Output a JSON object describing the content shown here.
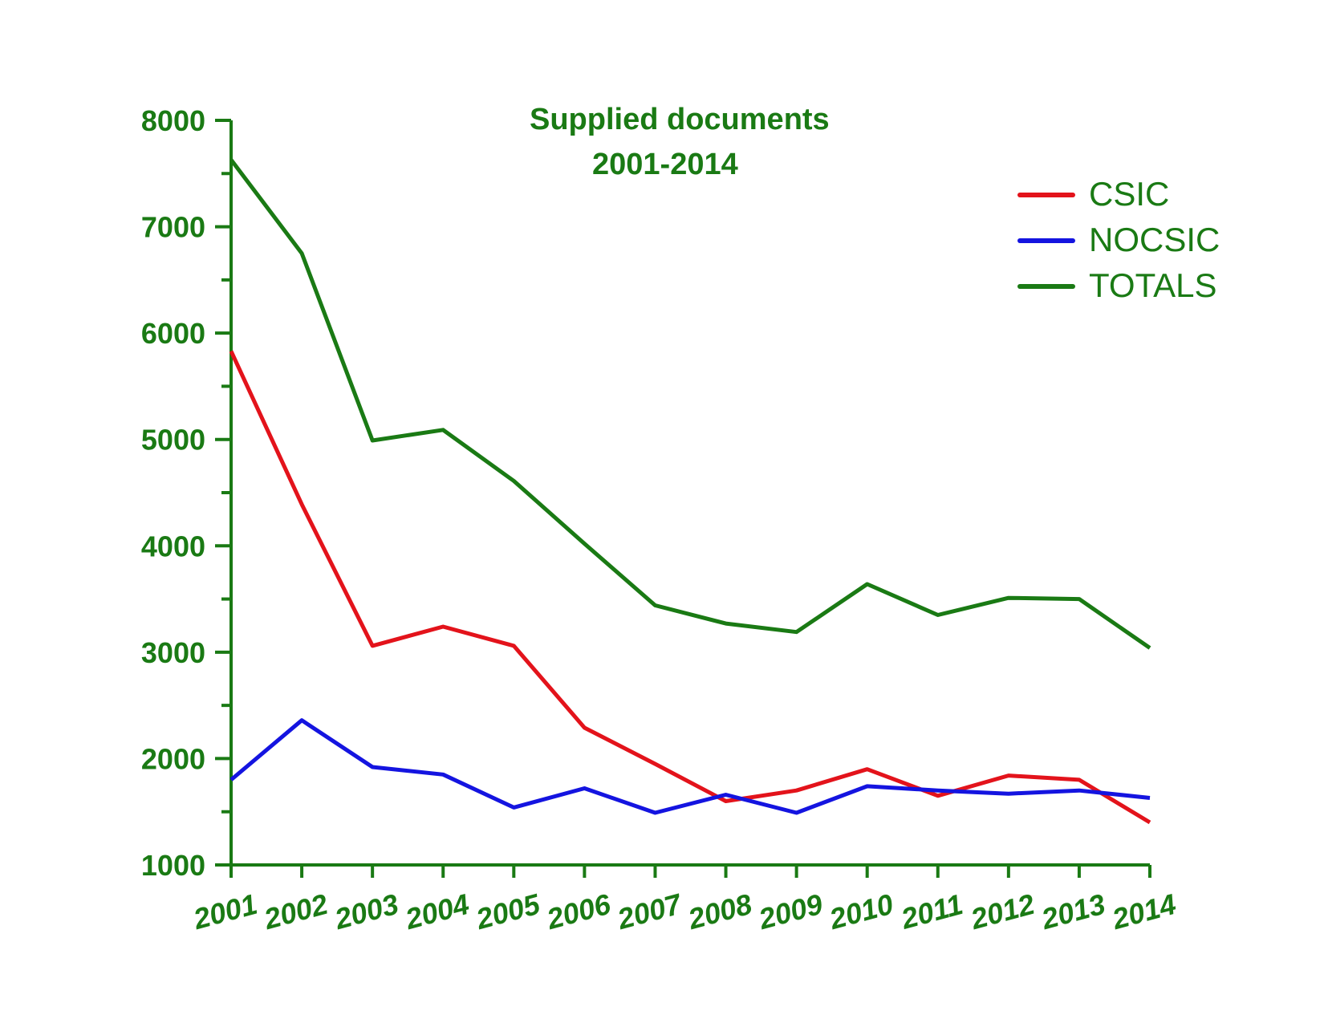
{
  "chart_data": {
    "type": "line",
    "title": "Supplied documents",
    "subtitle": "2001-2014",
    "xlabel": "",
    "ylabel": "",
    "categories": [
      "2001",
      "2002",
      "2003",
      "2004",
      "2005",
      "2006",
      "2007",
      "2008",
      "2009",
      "2010",
      "2011",
      "2012",
      "2013",
      "2014"
    ],
    "ylim": [
      1000,
      8000
    ],
    "yticks": [
      "1000",
      "2000",
      "3000",
      "4000",
      "5000",
      "6000",
      "7000",
      "8000"
    ],
    "grid": false,
    "legend_position": "top-right",
    "series": [
      {
        "name": "CSIC",
        "color": "#e3131b",
        "values": [
          5830,
          4390,
          3060,
          3240,
          3060,
          2290,
          1950,
          1600,
          1700,
          1900,
          1650,
          1840,
          1800,
          1400
        ]
      },
      {
        "name": "NOCSIC",
        "color": "#1414e0",
        "values": [
          1800,
          2360,
          1920,
          1850,
          1540,
          1720,
          1490,
          1660,
          1490,
          1740,
          1700,
          1670,
          1700,
          1630
        ]
      },
      {
        "name": "TOTALS",
        "color": "#1a7a14",
        "values": [
          7630,
          6750,
          4990,
          5090,
          4610,
          4020,
          3440,
          3270,
          3190,
          3640,
          3350,
          3510,
          3500,
          3040
        ]
      }
    ],
    "axis_color": "#1a7a14"
  }
}
